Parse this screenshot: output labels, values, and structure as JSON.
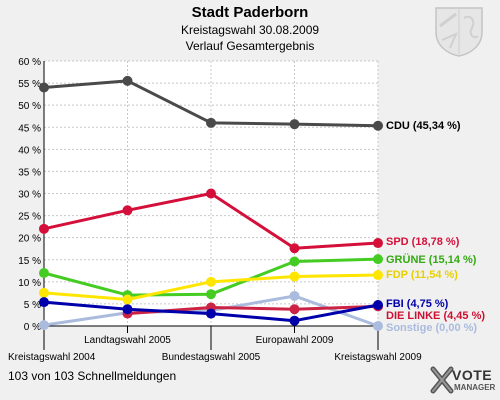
{
  "header": {
    "title": "Stadt Paderborn",
    "subtitle": "Kreistagswahl 30.08.2009",
    "subtitle2": "Verlauf Gesamtergebnis"
  },
  "footer": {
    "text": "103 von 103 Schnellmeldungen"
  },
  "logo": {
    "main": "VOTE",
    "sub": "MANAGER",
    "icon": "vote-manager-x-icon"
  },
  "crest": {
    "icon": "coat-of-arms-icon"
  },
  "chart_data": {
    "type": "line",
    "title": "Stadt Paderborn",
    "categories": [
      "Kreistagswahl 2004",
      "Landtagswahl 2005",
      "Bundestagswahl 2005",
      "Europawahl 2009",
      "Kreistagswahl 2009"
    ],
    "category_label_row": [
      "bottom",
      "top",
      "bottom",
      "top",
      "bottom"
    ],
    "ylim": [
      0,
      60
    ],
    "yticks": [
      0,
      5,
      10,
      15,
      20,
      25,
      30,
      35,
      40,
      45,
      50,
      55,
      60
    ],
    "ytick_labels": [
      "0 %",
      "5 %",
      "10 %",
      "15 %",
      "20 %",
      "25 %",
      "30 %",
      "35 %",
      "40 %",
      "45 %",
      "50 %",
      "55 %",
      "60 %"
    ],
    "grid": true,
    "series": [
      {
        "name": "CDU",
        "label": "CDU (45,34 %)",
        "color": "#4a4a4a",
        "label_color": "#000000",
        "values": [
          54.0,
          55.5,
          46.0,
          45.7,
          45.34
        ]
      },
      {
        "name": "SPD",
        "label": "SPD (18,78 %)",
        "color": "#d4103a",
        "label_color": "#d4103a",
        "values": [
          22.0,
          26.2,
          30.0,
          17.6,
          18.78
        ]
      },
      {
        "name": "GRÜNE",
        "label": "GRÜNE (15,14 %)",
        "color": "#44cc22",
        "label_color": "#33aa11",
        "values": [
          12.0,
          7.0,
          7.2,
          14.6,
          15.14
        ]
      },
      {
        "name": "FDP",
        "label": "FDP (11,54 %)",
        "color": "#ffe600",
        "label_color": "#e8d000",
        "values": [
          7.5,
          6.0,
          10.0,
          11.2,
          11.54
        ]
      },
      {
        "name": "Sonstige",
        "label": "Sonstige (0,00 %)",
        "color": "#aabbdd",
        "label_color": "#aabbdd",
        "values": [
          0.2,
          3.0,
          3.5,
          6.8,
          0.0
        ]
      },
      {
        "name": "DIE LINKE",
        "label": "DIE LINKE (4,45 %)",
        "color": "#cc2244",
        "label_color": "#cc1133",
        "values": [
          null,
          2.8,
          4.2,
          3.8,
          4.45
        ]
      },
      {
        "name": "FBI",
        "label": "FBI (4,75 %)",
        "color": "#0000aa",
        "label_color": "#0000aa",
        "values": [
          5.4,
          3.8,
          2.8,
          1.2,
          4.75
        ]
      }
    ]
  }
}
